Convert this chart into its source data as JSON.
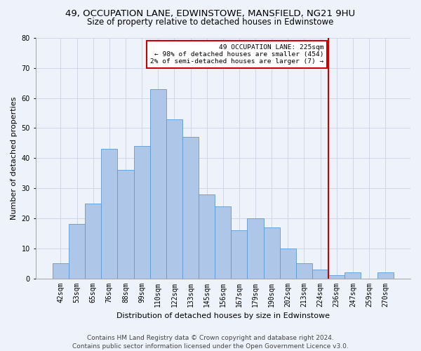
{
  "title_line1": "49, OCCUPATION LANE, EDWINSTOWE, MANSFIELD, NG21 9HU",
  "title_line2": "Size of property relative to detached houses in Edwinstowe",
  "xlabel": "Distribution of detached houses by size in Edwinstowe",
  "ylabel": "Number of detached properties",
  "footer_line1": "Contains HM Land Registry data © Crown copyright and database right 2024.",
  "footer_line2": "Contains public sector information licensed under the Open Government Licence v3.0.",
  "bin_labels": [
    "42sqm",
    "53sqm",
    "65sqm",
    "76sqm",
    "88sqm",
    "99sqm",
    "110sqm",
    "122sqm",
    "133sqm",
    "145sqm",
    "156sqm",
    "167sqm",
    "179sqm",
    "190sqm",
    "202sqm",
    "213sqm",
    "224sqm",
    "236sqm",
    "247sqm",
    "259sqm",
    "270sqm"
  ],
  "bar_heights": [
    5,
    18,
    25,
    43,
    36,
    44,
    63,
    53,
    47,
    28,
    24,
    16,
    20,
    17,
    10,
    5,
    3,
    1,
    2,
    0,
    2
  ],
  "bar_color": "#aec6e8",
  "bar_edge_color": "#5b9bd5",
  "red_line_color": "#cc0000",
  "annotation_text_line1": "49 OCCUPATION LANE: 225sqm",
  "annotation_text_line2": "← 98% of detached houses are smaller (454)",
  "annotation_text_line3": "2% of semi-detached houses are larger (7) →",
  "annotation_box_color": "#ffffff",
  "annotation_box_edge_color": "#cc0000",
  "ylim": [
    0,
    80
  ],
  "yticks": [
    0,
    10,
    20,
    30,
    40,
    50,
    60,
    70,
    80
  ],
  "grid_color": "#d0d8e8",
  "bg_color": "#eef2fa",
  "title1_fontsize": 9.5,
  "title2_fontsize": 8.5,
  "xlabel_fontsize": 8,
  "ylabel_fontsize": 8,
  "tick_fontsize": 7,
  "footer_fontsize": 6.5,
  "red_line_bin_index": 16
}
